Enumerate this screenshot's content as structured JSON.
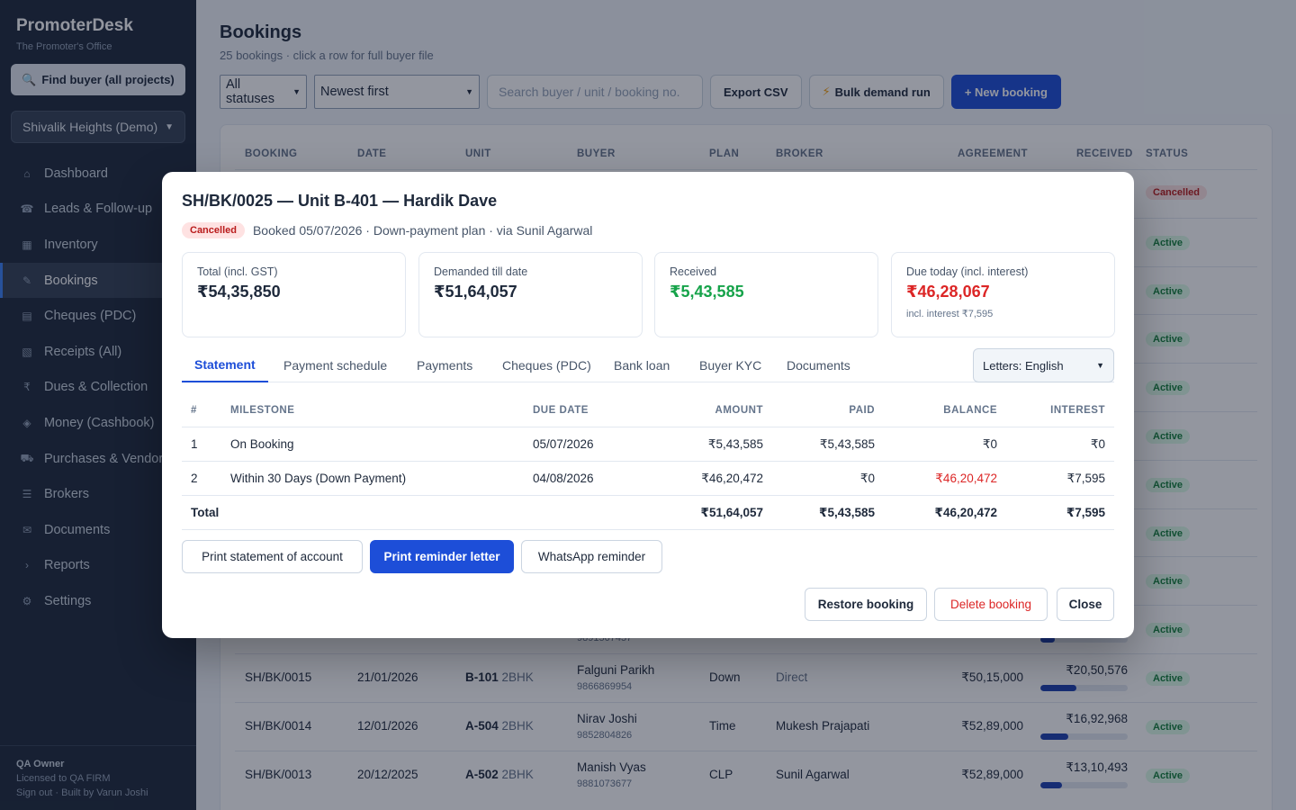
{
  "sidebar": {
    "brand": "PromoterDesk",
    "tagline": "The Promoter's Office",
    "find_buyer": "Find buyer (all projects)",
    "project": "Shivalik Heights (Demo)",
    "items": [
      {
        "label": "Dashboard",
        "icon": "home-icon"
      },
      {
        "label": "Leads & Follow-up",
        "icon": "phone-icon"
      },
      {
        "label": "Inventory",
        "icon": "grid-icon"
      },
      {
        "label": "Bookings",
        "icon": "pencil-icon"
      },
      {
        "label": "Cheques (PDC)",
        "icon": "cheque-icon"
      },
      {
        "label": "Receipts (All)",
        "icon": "receipt-icon"
      },
      {
        "label": "Dues & Collection",
        "icon": "rupee-icon"
      },
      {
        "label": "Money (Cashbook)",
        "icon": "diamond-icon"
      },
      {
        "label": "Purchases & Vendors",
        "icon": "truck-icon"
      },
      {
        "label": "Brokers",
        "icon": "list-icon"
      },
      {
        "label": "Documents",
        "icon": "mail-icon"
      },
      {
        "label": "Reports",
        "icon": "chart-icon"
      },
      {
        "label": "Settings",
        "icon": "gear-icon"
      }
    ],
    "footer": {
      "owner": "QA Owner",
      "license": "Licensed to QA FIRM",
      "links": "Sign out · Built by Varun Joshi"
    }
  },
  "main": {
    "title": "Bookings",
    "subtitle": "25 bookings · click a row for full buyer file",
    "filters": {
      "status": "All statuses",
      "sort": "Newest first",
      "search_placeholder": "Search buyer / unit / booking no."
    },
    "buttons": {
      "export": "Export CSV",
      "bulk": "Bulk demand run",
      "new": "+ New booking"
    },
    "table": {
      "headers": [
        "BOOKING",
        "DATE",
        "UNIT",
        "BUYER",
        "PLAN",
        "BROKER",
        "AGREEMENT",
        "RECEIVED",
        "STATUS"
      ],
      "background_statuses": [
        "Cancelled",
        "Active",
        "Active",
        "Active",
        "Active",
        "Active",
        "Active",
        "Active",
        "Active",
        "Active"
      ],
      "rows": [
        {
          "booking": "SH/BK/0015",
          "date": "21/01/2026",
          "unit": "B-101",
          "type": "2BHK",
          "buyer": "Falguni Parikh",
          "phone": "9866869954",
          "plan": "Down",
          "broker": "Direct",
          "agreement": "₹50,15,000",
          "received": "₹20,50,576",
          "progress": 0.41,
          "status": "Active"
        },
        {
          "booking": "SH/BK/0014",
          "date": "12/01/2026",
          "unit": "A-504",
          "type": "2BHK",
          "buyer": "Nirav Joshi",
          "phone": "9852804826",
          "plan": "Time",
          "broker": "Mukesh Prajapati",
          "agreement": "₹52,89,000",
          "received": "₹16,92,968",
          "progress": 0.32,
          "status": "Active"
        },
        {
          "booking": "SH/BK/0013",
          "date": "20/12/2025",
          "unit": "A-502",
          "type": "2BHK",
          "buyer": "Manish Vyas",
          "phone": "9881073677",
          "plan": "CLP",
          "broker": "Sunil Agarwal",
          "agreement": "₹52,89,000",
          "received": "₹13,10,493",
          "progress": 0.25,
          "status": "Active"
        }
      ],
      "partial_phone": "9891507457"
    }
  },
  "modal": {
    "title": "SH/BK/0025 — Unit B-401 — Hardik Dave",
    "status": "Cancelled",
    "meta": "Booked 05/07/2026 · Down-payment plan · via Sunil Agarwal",
    "kpis": [
      {
        "label": "Total (incl. GST)",
        "value": "₹54,35,850",
        "note": ""
      },
      {
        "label": "Demanded till date",
        "value": "₹51,64,057",
        "note": ""
      },
      {
        "label": "Received",
        "value": "₹5,43,585",
        "note": ""
      },
      {
        "label": "Due today (incl. interest)",
        "value": "₹46,28,067",
        "note": "incl. interest ₹7,595"
      }
    ],
    "tabs": [
      "Statement",
      "Payment schedule",
      "Payments",
      "Cheques (PDC)",
      "Bank loan",
      "Buyer KYC",
      "Documents"
    ],
    "language": "Letters: English",
    "statement": {
      "headers": [
        "#",
        "MILESTONE",
        "DUE DATE",
        "AMOUNT",
        "PAID",
        "BALANCE",
        "INTEREST"
      ],
      "rows": [
        {
          "n": "1",
          "milestone": "On Booking",
          "due": "05/07/2026",
          "amount": "₹5,43,585",
          "paid": "₹5,43,585",
          "balance": "₹0",
          "interest": "₹0"
        },
        {
          "n": "2",
          "milestone": "Within 30 Days (Down Payment)",
          "due": "04/08/2026",
          "amount": "₹46,20,472",
          "paid": "₹0",
          "balance": "₹46,20,472",
          "interest": "₹7,595"
        }
      ],
      "total": {
        "label": "Total",
        "amount": "₹51,64,057",
        "paid": "₹5,43,585",
        "balance": "₹46,20,472",
        "interest": "₹7,595"
      }
    },
    "actions": {
      "print_statement": "Print statement of account",
      "print_reminder": "Print reminder letter",
      "whatsapp": "WhatsApp reminder",
      "restore": "Restore booking",
      "delete": "Delete booking",
      "close": "Close"
    }
  }
}
